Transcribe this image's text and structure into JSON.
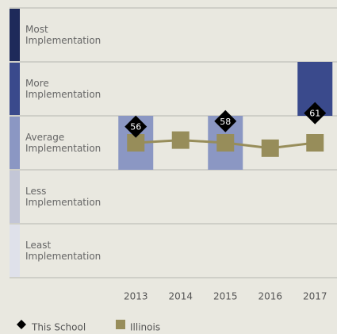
{
  "chart_data": {
    "type": "line",
    "categories": [
      "2013",
      "2014",
      "2015",
      "2016",
      "2017"
    ],
    "ylim": [
      0,
      100
    ],
    "bands": [
      {
        "label": "Least Implementation",
        "range": [
          0,
          20
        ],
        "color": "#dfe1ea"
      },
      {
        "label": "Less Implementation",
        "range": [
          20,
          40
        ],
        "color": "#c3c6d6"
      },
      {
        "label": "Average Implementation",
        "range": [
          40,
          60
        ],
        "color": "#8b97c3"
      },
      {
        "label": "More Implementation",
        "range": [
          60,
          80
        ],
        "color": "#3a4a8c"
      },
      {
        "label": "Most Implementation",
        "range": [
          80,
          100
        ],
        "color": "#1e2a5a"
      }
    ],
    "series": [
      {
        "name": "This School",
        "color": "#000000",
        "values": [
          56,
          null,
          58,
          null,
          61
        ]
      },
      {
        "name": "Illinois",
        "color": "#978d5a",
        "values": [
          50,
          51,
          50,
          48,
          50
        ]
      }
    ]
  }
}
